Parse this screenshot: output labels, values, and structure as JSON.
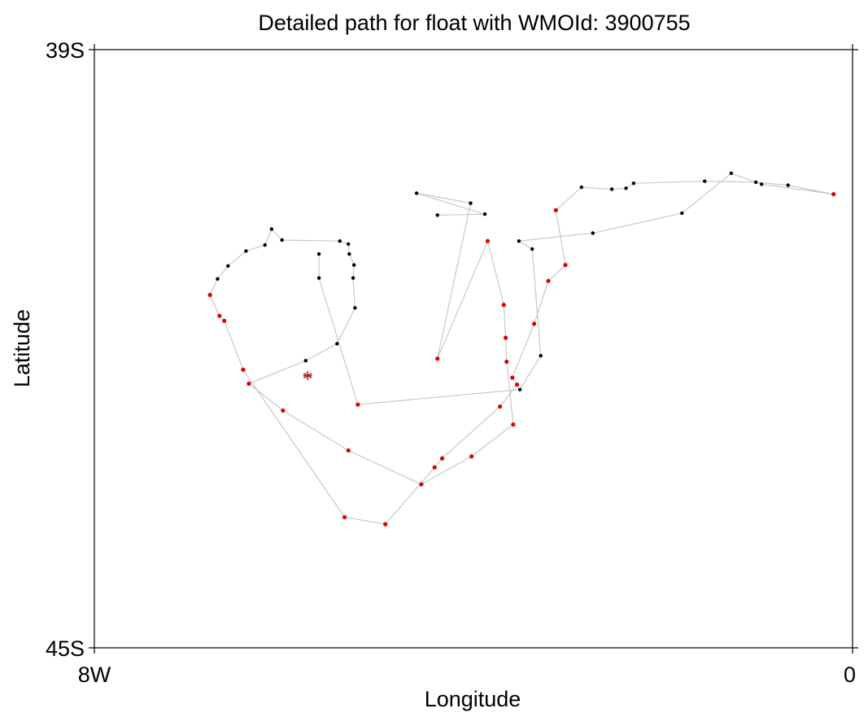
{
  "chart_data": {
    "type": "scatter",
    "title": "Detailed path for float with WMOId: 3900755",
    "xlabel": "Longitude",
    "ylabel": "Latitude",
    "xlim": [
      -8,
      0
    ],
    "ylim": [
      -45,
      -39
    ],
    "x_ticks": [
      {
        "value": -8,
        "label": "8W"
      },
      {
        "value": 0,
        "label": "0"
      }
    ],
    "y_ticks": [
      {
        "value": -39,
        "label": "39S"
      },
      {
        "value": -45,
        "label": "45S"
      }
    ],
    "grid": false,
    "colors": {
      "track": "#c8c8c8",
      "point_default": "#000000",
      "point_highlight": "#e00000",
      "deploy_marker": "#b22222"
    },
    "deployment": {
      "lon": -5.75,
      "lat": -42.27,
      "marker": "asterisk"
    },
    "series": [
      {
        "values": [
          {
            "lon": -5.63,
            "lat": -41.05,
            "flag": "default"
          },
          {
            "lon": -5.63,
            "lat": -41.29,
            "flag": "default"
          },
          {
            "lon": -5.22,
            "lat": -42.56,
            "flag": "highlight"
          },
          {
            "lon": -3.51,
            "lat": -42.41,
            "flag": "default"
          },
          {
            "lon": -3.29,
            "lat": -42.07,
            "flag": "default"
          },
          {
            "lon": -3.38,
            "lat": -41.0,
            "flag": "default"
          },
          {
            "lon": -3.52,
            "lat": -40.92,
            "flag": "default"
          },
          {
            "lon": -2.74,
            "lat": -40.84,
            "flag": "default"
          },
          {
            "lon": -1.8,
            "lat": -40.64,
            "flag": "default"
          },
          {
            "lon": -1.28,
            "lat": -40.24,
            "flag": "default"
          },
          {
            "lon": -0.96,
            "lat": -40.35,
            "flag": "default"
          },
          {
            "lon": -0.2,
            "lat": -40.45,
            "flag": "highlight"
          },
          {
            "lon": -0.68,
            "lat": -40.36,
            "flag": "default"
          },
          {
            "lon": -1.02,
            "lat": -40.33,
            "flag": "default"
          },
          {
            "lon": -1.56,
            "lat": -40.32,
            "flag": "default"
          },
          {
            "lon": -2.31,
            "lat": -40.34,
            "flag": "default"
          },
          {
            "lon": -2.39,
            "lat": -40.39,
            "flag": "default"
          },
          {
            "lon": -2.54,
            "lat": -40.4,
            "flag": "default"
          },
          {
            "lon": -2.86,
            "lat": -40.38,
            "flag": "default"
          },
          {
            "lon": -3.13,
            "lat": -40.61,
            "flag": "highlight"
          },
          {
            "lon": -3.03,
            "lat": -41.16,
            "flag": "highlight"
          },
          {
            "lon": -3.21,
            "lat": -41.32,
            "flag": "highlight"
          },
          {
            "lon": -3.36,
            "lat": -41.75,
            "flag": "highlight"
          },
          {
            "lon": -3.59,
            "lat": -42.29,
            "flag": "highlight"
          },
          {
            "lon": -3.54,
            "lat": -42.36,
            "flag": "highlight"
          },
          {
            "lon": -3.72,
            "lat": -42.58,
            "flag": "highlight"
          },
          {
            "lon": -4.33,
            "lat": -43.1,
            "flag": "highlight"
          },
          {
            "lon": -4.41,
            "lat": -43.19,
            "flag": "highlight"
          },
          {
            "lon": -4.93,
            "lat": -43.76,
            "flag": "highlight"
          },
          {
            "lon": -5.36,
            "lat": -43.69,
            "flag": "highlight"
          },
          {
            "lon": -6.43,
            "lat": -42.21,
            "flag": "highlight"
          },
          {
            "lon": -6.63,
            "lat": -41.72,
            "flag": "highlight"
          },
          {
            "lon": -6.68,
            "lat": -41.67,
            "flag": "highlight"
          },
          {
            "lon": -6.78,
            "lat": -41.46,
            "flag": "highlight"
          },
          {
            "lon": -6.7,
            "lat": -41.3,
            "flag": "default"
          },
          {
            "lon": -6.59,
            "lat": -41.17,
            "flag": "default"
          },
          {
            "lon": -6.4,
            "lat": -41.02,
            "flag": "default"
          },
          {
            "lon": -6.2,
            "lat": -40.96,
            "flag": "default"
          },
          {
            "lon": -6.13,
            "lat": -40.8,
            "flag": "default"
          },
          {
            "lon": -6.02,
            "lat": -40.91,
            "flag": "default"
          },
          {
            "lon": -5.41,
            "lat": -40.92,
            "flag": "default"
          },
          {
            "lon": -5.32,
            "lat": -40.95,
            "flag": "default"
          },
          {
            "lon": -5.31,
            "lat": -41.05,
            "flag": "default"
          },
          {
            "lon": -5.26,
            "lat": -41.16,
            "flag": "default"
          },
          {
            "lon": -5.27,
            "lat": -41.29,
            "flag": "default"
          },
          {
            "lon": -5.25,
            "lat": -41.59,
            "flag": "default"
          },
          {
            "lon": -5.44,
            "lat": -41.95,
            "flag": "default"
          },
          {
            "lon": -5.77,
            "lat": -42.12,
            "flag": "default"
          },
          {
            "lon": -6.37,
            "lat": -42.35,
            "flag": "highlight"
          },
          {
            "lon": -6.01,
            "lat": -42.62,
            "flag": "highlight"
          },
          {
            "lon": -5.32,
            "lat": -43.02,
            "flag": "highlight"
          },
          {
            "lon": -4.55,
            "lat": -43.36,
            "flag": "highlight"
          },
          {
            "lon": -4.02,
            "lat": -43.08,
            "flag": "highlight"
          },
          {
            "lon": -3.58,
            "lat": -42.76,
            "flag": "highlight"
          },
          {
            "lon": -3.65,
            "lat": -42.13,
            "flag": "highlight"
          },
          {
            "lon": -3.66,
            "lat": -41.89,
            "flag": "highlight"
          },
          {
            "lon": -3.68,
            "lat": -41.56,
            "flag": "highlight"
          },
          {
            "lon": -3.85,
            "lat": -40.92,
            "flag": "highlight"
          },
          {
            "lon": -4.38,
            "lat": -42.1,
            "flag": "highlight"
          },
          {
            "lon": -4.03,
            "lat": -40.54,
            "flag": "default"
          },
          {
            "lon": -4.6,
            "lat": -40.44,
            "flag": "default"
          },
          {
            "lon": -3.88,
            "lat": -40.65,
            "flag": "default"
          },
          {
            "lon": -4.38,
            "lat": -40.66,
            "flag": "default"
          }
        ]
      }
    ]
  }
}
